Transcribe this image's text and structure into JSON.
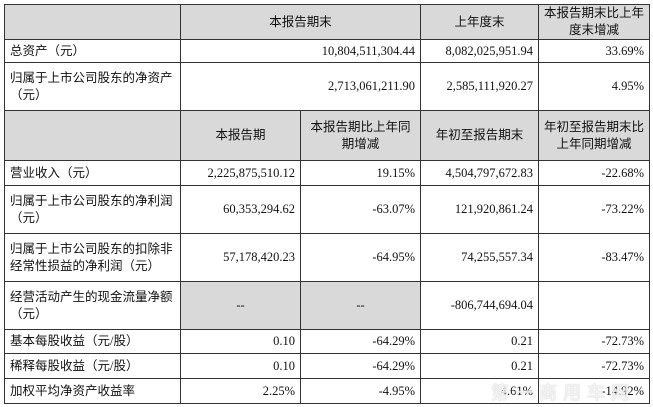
{
  "top_header": {
    "col1": "本报告期末",
    "col2": "上年度末",
    "col3": "本报告期末比上年度末增减"
  },
  "top_rows": [
    {
      "label": "总资产（元）",
      "current": "10,804,511,304.44",
      "prior": "8,082,025,951.94",
      "change": "33.69%"
    },
    {
      "label": "归属于上市公司股东的净资产（元）",
      "current": "2,713,061,211.90",
      "prior": "2,585,111,920.27",
      "change": "4.95%"
    }
  ],
  "bottom_header": {
    "col1": "本报告期",
    "col2": "本报告期比上年同期增减",
    "col3": "年初至报告期末",
    "col4": "年初至报告期末比上年同期增减"
  },
  "bottom_rows": [
    {
      "label": "营业收入（元）",
      "period": "2,225,875,510.12",
      "period_change": "19.15%",
      "ytd": "4,504,797,672.83",
      "ytd_change": "-22.68%"
    },
    {
      "label": "归属于上市公司股东的净利润（元）",
      "period": "60,353,294.62",
      "period_change": "-63.07%",
      "ytd": "121,920,861.24",
      "ytd_change": "-73.22%"
    },
    {
      "label": "归属于上市公司股东的扣除非经常性损益的净利润（元）",
      "period": "57,178,420.23",
      "period_change": "-64.95%",
      "ytd": "74,255,557.34",
      "ytd_change": "-83.47%"
    },
    {
      "label": "经营活动产生的现金流量净额（元）",
      "period": "--",
      "period_change": "--",
      "ytd": "-806,744,694.04",
      "ytd_change": ""
    },
    {
      "label": "基本每股收益（元/股）",
      "period": "0.10",
      "period_change": "-64.29%",
      "ytd": "0.21",
      "ytd_change": "-72.73%"
    },
    {
      "label": "稀释每股收益（元/股）",
      "period": "0.10",
      "period_change": "-64.29%",
      "ytd": "0.21",
      "ytd_change": "-72.73%"
    },
    {
      "label": "加权平均净资产收益率",
      "period": "2.25%",
      "period_change": "-4.95%",
      "ytd": "4.61%",
      "ytd_change": "-14.92%"
    }
  ],
  "watermark": "第一商用车网"
}
